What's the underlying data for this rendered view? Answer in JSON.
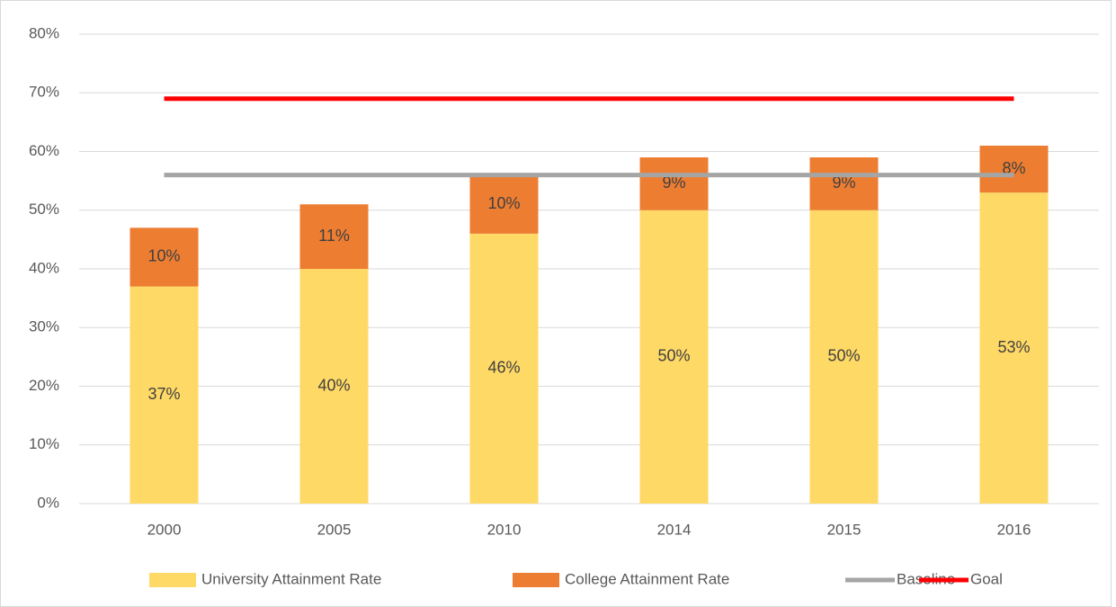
{
  "chart_data": {
    "type": "bar",
    "stacked": true,
    "categories": [
      "2000",
      "2005",
      "2010",
      "2014",
      "2015",
      "2016"
    ],
    "series": [
      {
        "name": "University Attainment Rate",
        "type": "bar",
        "color": "#ffd966",
        "values": [
          37,
          40,
          46,
          50,
          50,
          53
        ],
        "value_labels": [
          "37%",
          "40%",
          "46%",
          "50%",
          "50%",
          "53%"
        ]
      },
      {
        "name": "College Attainment Rate",
        "type": "bar",
        "color": "#ed7d31",
        "values": [
          10,
          11,
          10,
          9,
          9,
          8
        ],
        "value_labels": [
          "10%",
          "11%",
          "10%",
          "9%",
          "9%",
          "8%"
        ]
      },
      {
        "name": "Baseline",
        "type": "line",
        "color": "#a5a5a5",
        "values": [
          56,
          56,
          56,
          56,
          56,
          56
        ]
      },
      {
        "name": "Goal",
        "type": "line",
        "color": "#ff0000",
        "values": [
          69,
          69,
          69,
          69,
          69,
          69
        ]
      }
    ],
    "ylim": [
      0,
      80
    ],
    "yticks": [
      {
        "value": 0,
        "label": "0%"
      },
      {
        "value": 10,
        "label": "10%"
      },
      {
        "value": 20,
        "label": "20%"
      },
      {
        "value": 30,
        "label": "30%"
      },
      {
        "value": 40,
        "label": "40%"
      },
      {
        "value": 50,
        "label": "50%"
      },
      {
        "value": 60,
        "label": "60%"
      },
      {
        "value": 70,
        "label": "70%"
      },
      {
        "value": 80,
        "label": "80%"
      }
    ],
    "grid": true,
    "legend": "bottom"
  }
}
